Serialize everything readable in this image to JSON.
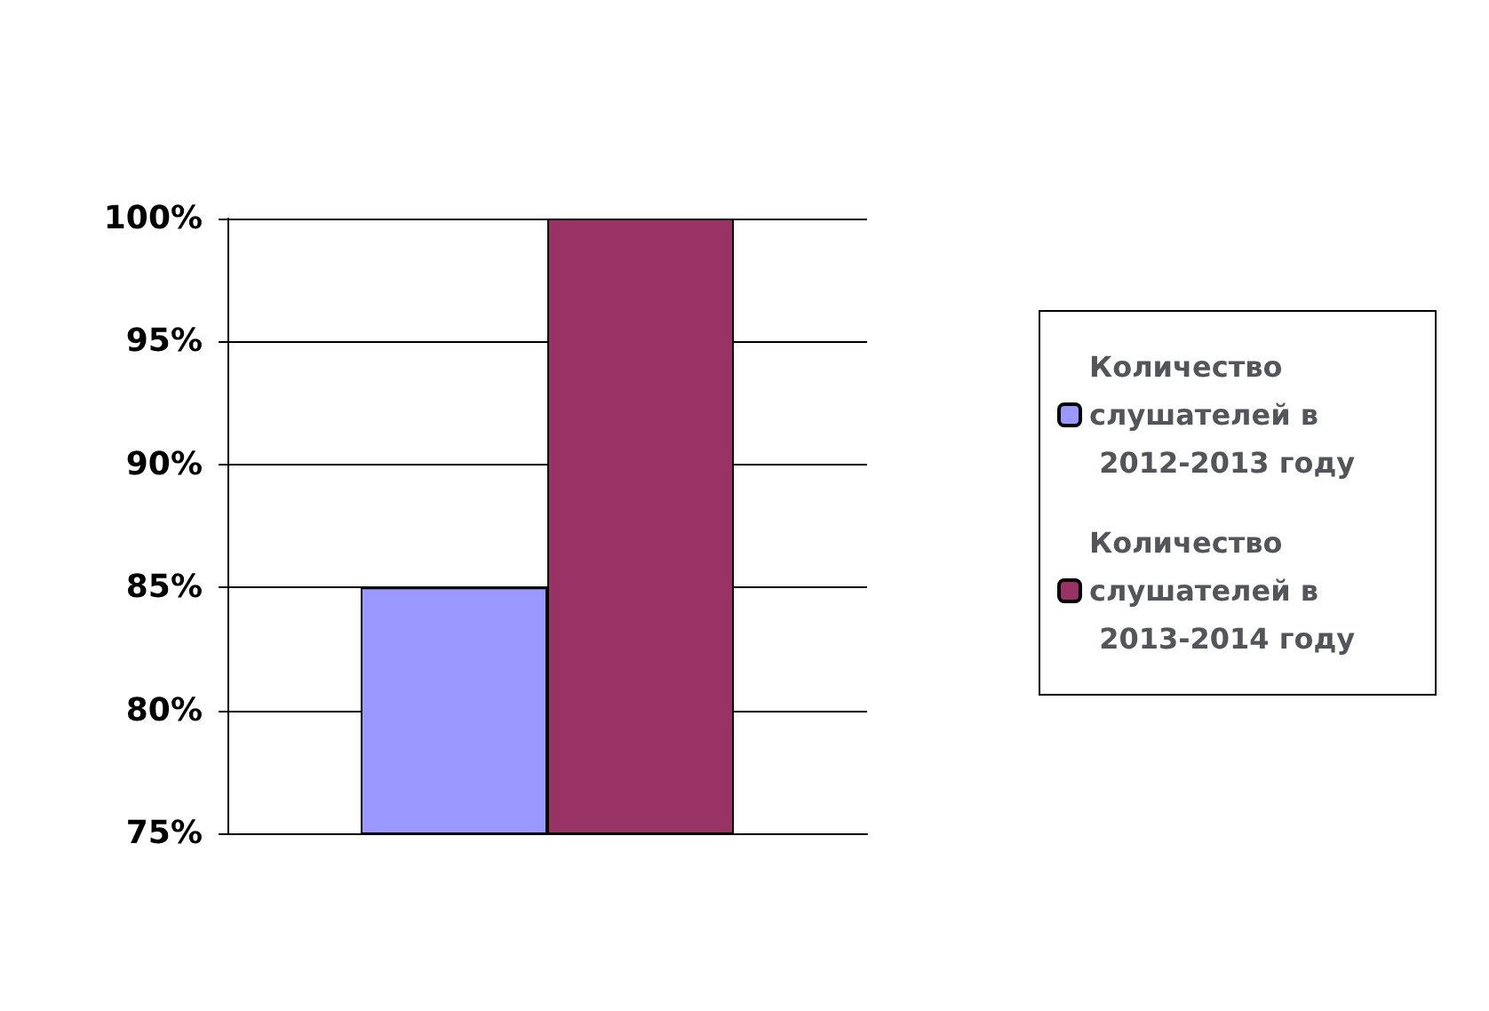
{
  "chart_data": {
    "type": "bar",
    "categories": [
      null
    ],
    "series": [
      {
        "name": "Количество слушателей в 2012-2013 году",
        "color": "#9999ff",
        "values": [
          85
        ]
      },
      {
        "name": "Количество слушателей в 2013-2014 году",
        "color": "#993366",
        "values": [
          100
        ]
      }
    ],
    "ylim": [
      75,
      100
    ],
    "yticks": [
      {
        "value": 75,
        "label": "75%"
      },
      {
        "value": 80,
        "label": "80%"
      },
      {
        "value": 85,
        "label": "85%"
      },
      {
        "value": 90,
        "label": "90%"
      },
      {
        "value": 95,
        "label": "95%"
      },
      {
        "value": 100,
        "label": "100%"
      }
    ],
    "grid": "y",
    "legend": "right"
  }
}
